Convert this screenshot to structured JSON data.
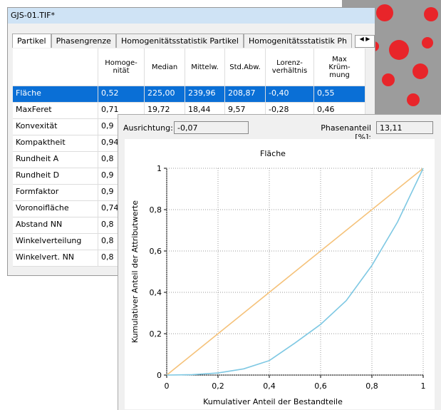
{
  "window": {
    "title": "GJS-01.TIF*",
    "tabs": [
      "Partikel",
      "Phasengrenze",
      "Homogenitätsstatistik Partikel",
      "Homogenitätsstatistik Ph"
    ],
    "table": {
      "headers": [
        [
          "Homoge-",
          "nität"
        ],
        [
          "Median"
        ],
        [
          "Mittelw."
        ],
        [
          "Std.Abw."
        ],
        [
          "Lorenz-",
          "verhältnis"
        ],
        [
          "Max",
          "Krüm-",
          "mung"
        ]
      ],
      "rows": [
        [
          "Fläche",
          "0,52",
          "225,00",
          "239,96",
          "208,87",
          "-0,40",
          "0,55"
        ],
        [
          "MaxFeret",
          "0,71",
          "19,72",
          "18,44",
          "9,57",
          "-0,28",
          "0,46"
        ],
        [
          "Konvexität",
          "0,9"
        ],
        [
          "Kompaktheit",
          "0,94"
        ],
        [
          "Rundheit A",
          "0,8"
        ],
        [
          "Rundheit D",
          "0,9"
        ],
        [
          "Formfaktor",
          "0,9"
        ],
        [
          "Voronoifläche",
          "0,74"
        ],
        [
          "Abstand NN",
          "0,8"
        ],
        [
          "Winkelverteilung",
          "0,8"
        ],
        [
          "Winkelvert. NN",
          "0,8"
        ]
      ]
    }
  },
  "panel": {
    "orientation_label": "Ausrichtung:",
    "orientation_value": "-0,07",
    "phase_label": "Phasenanteil [%]:",
    "phase_value": "13,11"
  },
  "chart_data": {
    "type": "line",
    "title": "Fläche",
    "x_label": "Kumulativer Anteil der Bestandteile",
    "y_label": "Kumulativer Anteil der Attributwerte",
    "x": [
      0,
      0.1,
      0.2,
      0.3,
      0.4,
      0.5,
      0.6,
      0.7,
      0.8,
      0.9,
      1
    ],
    "series": [
      {
        "color": "#f5c27a",
        "values": [
          0,
          0.1,
          0.2,
          0.3,
          0.4,
          0.5,
          0.6,
          0.7,
          0.8,
          0.9,
          1
        ]
      },
      {
        "color": "#7ec8e3",
        "values": [
          0,
          0.002,
          0.01,
          0.03,
          0.07,
          0.155,
          0.245,
          0.36,
          0.53,
          0.74,
          1
        ]
      }
    ],
    "xlim": [
      0,
      1
    ],
    "ylim": [
      0,
      1
    ],
    "xticks": [
      0,
      {
        "value": 0.2,
        "label": "0,2"
      },
      {
        "value": 0.4,
        "label": "0,4"
      },
      {
        "value": 0.6,
        "label": "0,6"
      },
      {
        "value": 0.8,
        "label": "0,8"
      },
      1
    ],
    "yticks": [
      0,
      {
        "value": 0.2,
        "label": "0,2"
      },
      {
        "value": 0.4,
        "label": "0,4"
      },
      {
        "value": 0.6,
        "label": "0,6"
      },
      {
        "value": 0.8,
        "label": "0,8"
      },
      1
    ],
    "grid": true
  }
}
